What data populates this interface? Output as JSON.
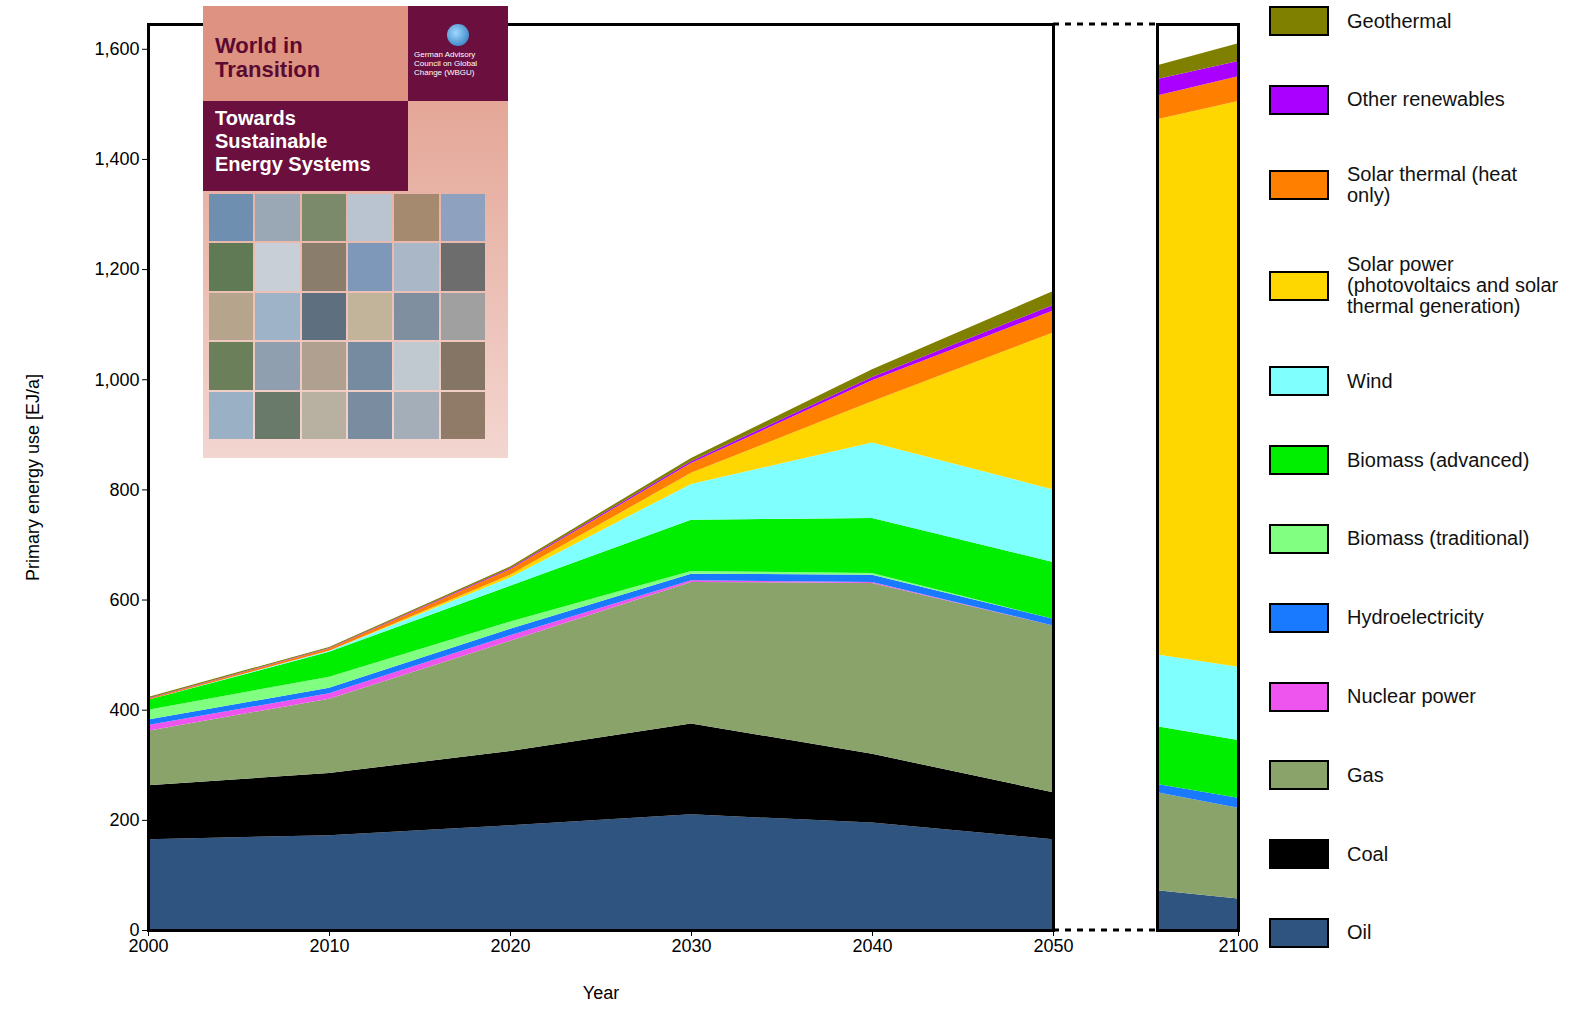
{
  "chart_data": [
    {
      "type": "area",
      "stacked": true,
      "xlabel": "Year",
      "ylabel": "Primary energy use [EJ/a]",
      "annotations": [
        "World in Transition",
        "Towards Sustainable Energy Systems",
        "German Advisory Council on Global Change (WBGU)"
      ],
      "x": [
        2000,
        2010,
        2020,
        2030,
        2040,
        2050
      ],
      "xlim": [
        2000,
        2050
      ],
      "xticks": [
        2000,
        2010,
        2020,
        2030,
        2040,
        2050
      ],
      "ylim": [
        0,
        1645
      ],
      "yticks": [
        0,
        200,
        400,
        600,
        800,
        {
          "value": 1000,
          "label": "1,000"
        },
        {
          "value": 1200,
          "label": "1,200"
        },
        {
          "value": 1400,
          "label": "1,400"
        },
        {
          "value": 1600,
          "label": "1,600"
        }
      ],
      "grid": false,
      "series": [
        {
          "name": "Oil",
          "color": "#2f5480",
          "values": [
            165,
            172,
            190,
            210,
            195,
            165
          ]
        },
        {
          "name": "Coal",
          "color": "#000000",
          "values": [
            98,
            113,
            135,
            165,
            125,
            85
          ]
        },
        {
          "name": "Gas",
          "color": "#8aa36a",
          "values": [
            99,
            135,
            200,
            257,
            310,
            303
          ]
        },
        {
          "name": "Nuclear power",
          "color": "#ee55ee",
          "values": [
            10,
            10,
            10,
            3,
            2,
            0
          ]
        },
        {
          "name": "Hydroelectricity",
          "color": "#1a7aff",
          "values": [
            10,
            10,
            12,
            12,
            13,
            12
          ]
        },
        {
          "name": "Biomass (traditional)",
          "color": "#80ff80",
          "values": [
            18,
            20,
            13,
            5,
            3,
            0
          ]
        },
        {
          "name": "Biomass (advanced)",
          "color": "#00ee00",
          "values": [
            18,
            45,
            65,
            93,
            100,
            103
          ]
        },
        {
          "name": "Wind",
          "color": "#80ffff",
          "values": [
            0,
            2,
            15,
            65,
            137,
            132
          ]
        },
        {
          "name": "Solar power (photovoltaics and solar thermal generation)",
          "color": "#ffd700",
          "values": [
            0,
            0,
            5,
            20,
            75,
            285
          ]
        },
        {
          "name": "Solar thermal (heat only)",
          "color": "#ff8000",
          "values": [
            2,
            4,
            10,
            18,
            38,
            40
          ]
        },
        {
          "name": "Other renewables",
          "color": "#aa00ff",
          "values": [
            1,
            1,
            2,
            3,
            6,
            10
          ]
        },
        {
          "name": "Geothermal",
          "color": "#808000",
          "values": [
            2,
            2,
            3,
            6,
            14,
            25
          ]
        }
      ]
    },
    {
      "type": "area",
      "stacked": true,
      "x": [
        2096,
        2100
      ],
      "xlim": [
        2096,
        2100
      ],
      "xticks": [
        2100
      ],
      "ylim": [
        0,
        1645
      ],
      "tick_labels": "x",
      "grid": false,
      "legend": "right",
      "series": [
        {
          "name": "Oil",
          "color": "#2f5480",
          "values": [
            72,
            57
          ]
        },
        {
          "name": "Coal",
          "color": "#000000",
          "values": [
            0,
            0
          ]
        },
        {
          "name": "Gas",
          "color": "#8aa36a",
          "values": [
            178,
            165
          ]
        },
        {
          "name": "Nuclear power",
          "color": "#ee55ee",
          "values": [
            0,
            0
          ]
        },
        {
          "name": "Hydroelectricity",
          "color": "#1a7aff",
          "values": [
            15,
            18
          ]
        },
        {
          "name": "Biomass (traditional)",
          "color": "#80ff80",
          "values": [
            0,
            0
          ]
        },
        {
          "name": "Biomass (advanced)",
          "color": "#00ee00",
          "values": [
            105,
            105
          ]
        },
        {
          "name": "Wind",
          "color": "#80ffff",
          "values": [
            130,
            133
          ]
        },
        {
          "name": "Solar power (photovoltaics and solar thermal generation)",
          "color": "#ffd700",
          "values": [
            972,
            1027
          ]
        },
        {
          "name": "Solar thermal (heat only)",
          "color": "#ff8000",
          "values": [
            43,
            45
          ]
        },
        {
          "name": "Other renewables",
          "color": "#aa00ff",
          "values": [
            30,
            28
          ]
        },
        {
          "name": "Geothermal",
          "color": "#808000",
          "values": [
            25,
            32
          ]
        }
      ]
    }
  ]
}
